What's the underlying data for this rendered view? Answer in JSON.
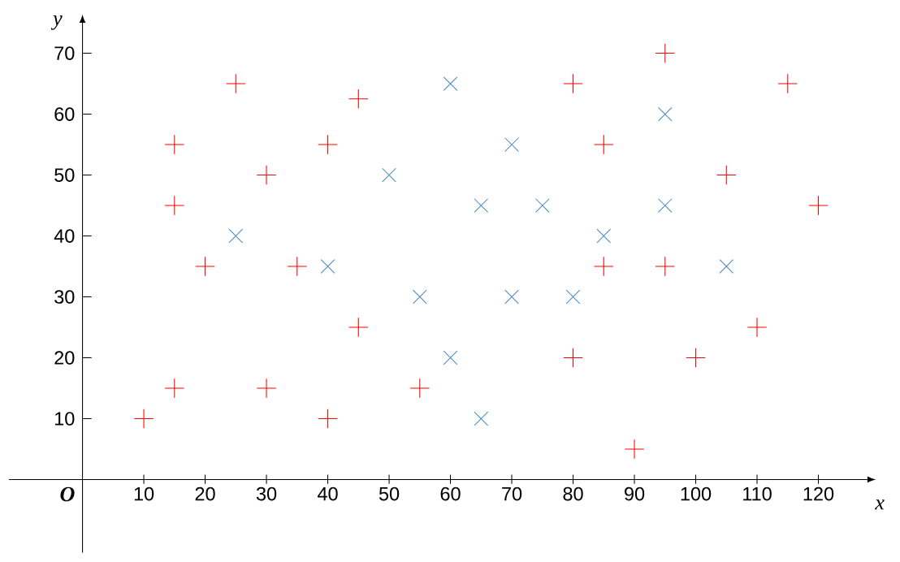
{
  "chart_data": {
    "type": "scatter",
    "xlabel": "x",
    "ylabel": "y",
    "xlim": [
      -12,
      128
    ],
    "ylim": [
      -12,
      75
    ],
    "xticks": [
      10,
      20,
      30,
      40,
      50,
      60,
      70,
      80,
      90,
      100,
      110,
      120
    ],
    "yticks": [
      10,
      20,
      30,
      40,
      50,
      60,
      70
    ],
    "grid": false,
    "annotations": [
      "O"
    ],
    "series": [
      {
        "color": "#ff0000",
        "marker": "plus",
        "x": [
          10,
          15,
          15,
          15,
          20,
          25,
          30,
          30,
          35,
          40,
          40,
          45,
          45,
          55,
          80,
          80,
          85,
          85,
          90,
          95,
          95,
          100,
          105,
          110,
          115,
          120
        ],
        "values": [
          10,
          55,
          45,
          15,
          35,
          65,
          50,
          15,
          35,
          55,
          10,
          62.5,
          25,
          15,
          65,
          20,
          55,
          35,
          5,
          70,
          35,
          20,
          50,
          25,
          65,
          45
        ]
      },
      {
        "color": "#4a8ac4",
        "marker": "cross",
        "x": [
          25,
          40,
          50,
          55,
          60,
          60,
          65,
          65,
          70,
          70,
          75,
          80,
          85,
          95,
          95,
          105
        ],
        "values": [
          40,
          35,
          50,
          30,
          65,
          20,
          45,
          10,
          55,
          30,
          45,
          30,
          40,
          60,
          45,
          35
        ]
      }
    ]
  }
}
